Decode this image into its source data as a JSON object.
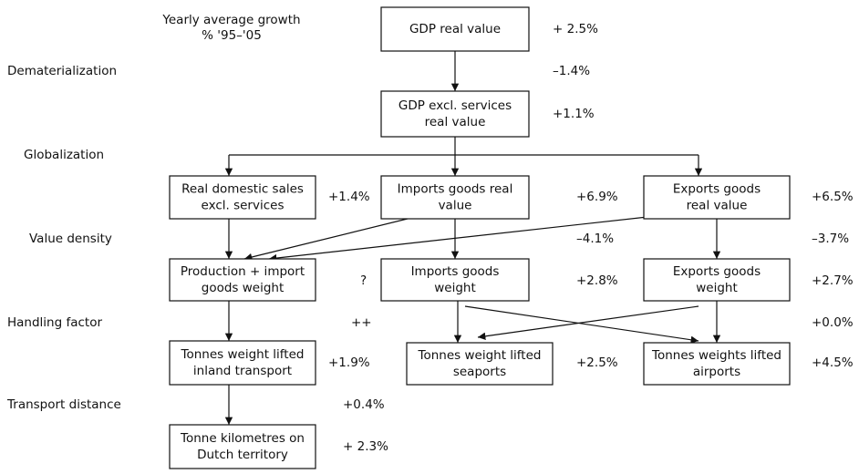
{
  "header": {
    "title": [
      "Yearly average growth",
      "% '95–'05"
    ]
  },
  "row_labels": [
    "Dematerialization",
    "Globalization",
    "Value density",
    "Handling factor",
    "Transport distance"
  ],
  "nodes": [
    {
      "label": [
        "GDP real value"
      ],
      "rate": "+ 2.5%"
    },
    {
      "label": [
        "GDP excl. services",
        "real value"
      ],
      "rate": "+1.1%"
    },
    {
      "label": [
        "Real domestic sales",
        "excl. services"
      ],
      "rate": "+1.4%"
    },
    {
      "label": [
        "Imports goods real",
        "value"
      ],
      "rate": "+6.9%"
    },
    {
      "label": [
        "Exports goods",
        "real value"
      ],
      "rate": "+6.5%"
    },
    {
      "label": [
        "Production + import",
        "goods weight"
      ],
      "rate": "?"
    },
    {
      "label": [
        "Imports goods",
        "weight"
      ],
      "rate": "+2.8%"
    },
    {
      "label": [
        "Exports goods",
        "weight"
      ],
      "rate": "+2.7%"
    },
    {
      "label": [
        "Tonnes weight lifted",
        "inland transport"
      ],
      "rate": "+1.9%"
    },
    {
      "label": [
        "Tonnes weight lifted",
        "seaports"
      ],
      "rate": "+2.5%"
    },
    {
      "label": [
        "Tonnes weights lifted",
        "airports"
      ],
      "rate": "+4.5%"
    },
    {
      "label": [
        "Tonne kilometres on",
        "Dutch territory"
      ],
      "rate": "+ 2.3%"
    }
  ],
  "transitions": [
    {
      "rate": "–1.4%"
    },
    {
      "rate": "–4.1%"
    },
    {
      "rate": "–3.7%"
    },
    {
      "rate": "++"
    },
    {
      "rate": "+0.0%"
    },
    {
      "rate": "+0.4%"
    }
  ]
}
